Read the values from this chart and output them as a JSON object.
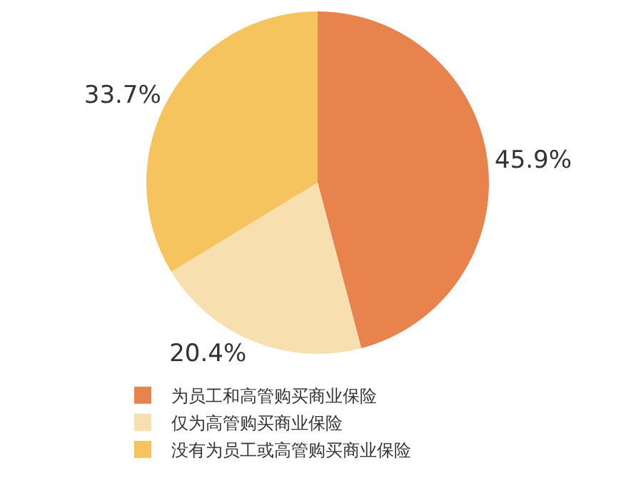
{
  "chart_data": {
    "type": "pie",
    "categories": [
      "为员工和高管购买商业保险",
      "仅为高管购买商业保险",
      "没有为员工或高管购买商业保险"
    ],
    "values": [
      45.9,
      20.4,
      33.7
    ],
    "value_labels": [
      "45.9%",
      "20.4%",
      "33.7%"
    ],
    "colors": [
      "#e8834e",
      "#f8dfb0",
      "#f6c45e"
    ],
    "legend": "bottom"
  }
}
